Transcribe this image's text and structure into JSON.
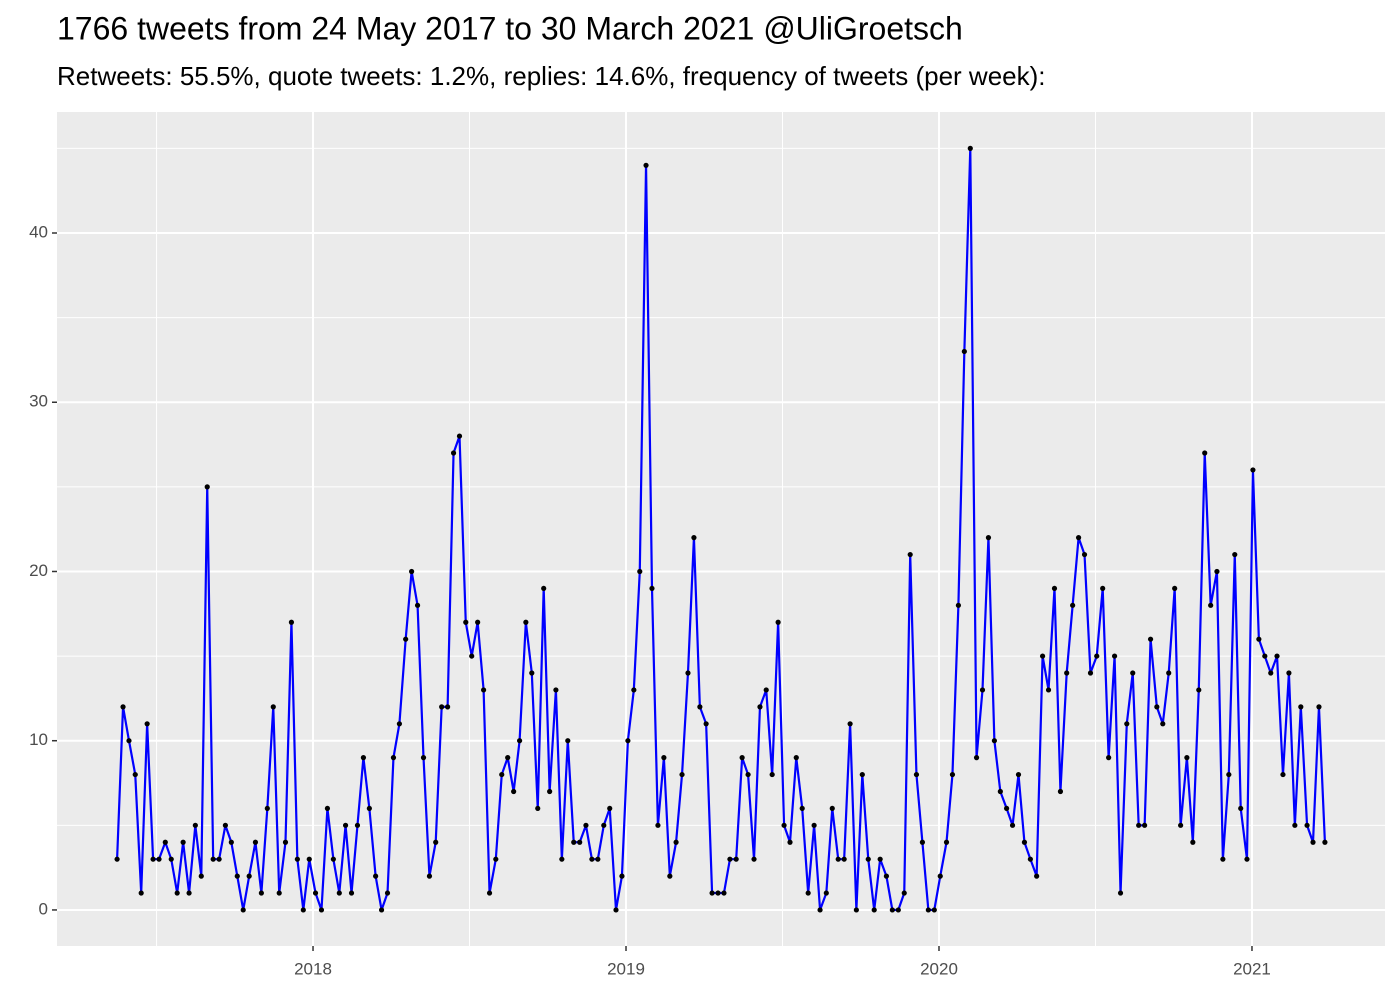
{
  "chart_data": {
    "type": "line",
    "title": "1766 tweets from 24 May 2017 to 30 March 2021 @UliGroetsch",
    "subtitle": "Retweets: 55.5%, quote tweets: 1.2%, replies: 14.6%, frequency of tweets (per week):",
    "color": "#0000ff",
    "point_color": "#000000",
    "grid": true,
    "xlim": [
      2017.182,
      2021.425
    ],
    "xticks": [
      2018,
      2019,
      2020,
      2021
    ],
    "ylim": [
      -2.13,
      47.15
    ],
    "yticks": [
      0,
      10,
      20,
      30,
      40
    ],
    "x": [
      2017.374,
      2017.393,
      2017.412,
      2017.432,
      2017.451,
      2017.47,
      2017.489,
      2017.508,
      2017.528,
      2017.547,
      2017.566,
      2017.585,
      2017.604,
      2017.624,
      2017.643,
      2017.662,
      2017.681,
      2017.7,
      2017.72,
      2017.739,
      2017.758,
      2017.777,
      2017.796,
      2017.816,
      2017.835,
      2017.854,
      2017.873,
      2017.892,
      2017.912,
      2017.931,
      2017.95,
      2017.969,
      2017.988,
      2018.008,
      2018.027,
      2018.046,
      2018.065,
      2018.084,
      2018.104,
      2018.123,
      2018.142,
      2018.161,
      2018.18,
      2018.2,
      2018.219,
      2018.238,
      2018.257,
      2018.276,
      2018.296,
      2018.315,
      2018.334,
      2018.353,
      2018.372,
      2018.392,
      2018.411,
      2018.43,
      2018.449,
      2018.468,
      2018.488,
      2018.507,
      2018.526,
      2018.545,
      2018.564,
      2018.584,
      2018.603,
      2018.622,
      2018.641,
      2018.66,
      2018.68,
      2018.699,
      2018.718,
      2018.737,
      2018.756,
      2018.776,
      2018.795,
      2018.814,
      2018.833,
      2018.852,
      2018.872,
      2018.891,
      2018.91,
      2018.929,
      2018.948,
      2018.968,
      2018.987,
      2019.006,
      2019.025,
      2019.044,
      2019.064,
      2019.083,
      2019.102,
      2019.121,
      2019.14,
      2019.16,
      2019.179,
      2019.198,
      2019.217,
      2019.236,
      2019.256,
      2019.275,
      2019.294,
      2019.313,
      2019.332,
      2019.352,
      2019.371,
      2019.39,
      2019.409,
      2019.428,
      2019.448,
      2019.467,
      2019.486,
      2019.505,
      2019.524,
      2019.544,
      2019.563,
      2019.582,
      2019.601,
      2019.62,
      2019.64,
      2019.659,
      2019.678,
      2019.697,
      2019.716,
      2019.736,
      2019.755,
      2019.774,
      2019.793,
      2019.812,
      2019.832,
      2019.851,
      2019.87,
      2019.889,
      2019.908,
      2019.928,
      2019.947,
      2019.966,
      2019.985,
      2020.004,
      2020.024,
      2020.043,
      2020.062,
      2020.081,
      2020.1,
      2020.12,
      2020.139,
      2020.158,
      2020.177,
      2020.196,
      2020.216,
      2020.235,
      2020.254,
      2020.273,
      2020.292,
      2020.312,
      2020.331,
      2020.35,
      2020.369,
      2020.388,
      2020.408,
      2020.427,
      2020.446,
      2020.465,
      2020.484,
      2020.504,
      2020.523,
      2020.542,
      2020.561,
      2020.58,
      2020.6,
      2020.619,
      2020.638,
      2020.657,
      2020.676,
      2020.696,
      2020.715,
      2020.734,
      2020.753,
      2020.772,
      2020.792,
      2020.811,
      2020.83,
      2020.849,
      2020.868,
      2020.888,
      2020.907,
      2020.926,
      2020.945,
      2020.964,
      2020.984,
      2021.003,
      2021.022,
      2021.041,
      2021.06,
      2021.08,
      2021.099,
      2021.118,
      2021.137,
      2021.156,
      2021.176,
      2021.195,
      2021.214,
      2021.233
    ],
    "values": [
      3,
      12,
      10,
      8,
      1,
      11,
      3,
      3,
      4,
      3,
      1,
      4,
      1,
      5,
      2,
      25,
      3,
      3,
      5,
      4,
      2,
      0,
      2,
      4,
      1,
      6,
      12,
      1,
      4,
      17,
      3,
      0,
      3,
      1,
      0,
      6,
      3,
      1,
      5,
      1,
      5,
      9,
      6,
      2,
      0,
      1,
      9,
      11,
      16,
      20,
      18,
      9,
      2,
      4,
      12,
      12,
      27,
      28,
      17,
      15,
      17,
      13,
      1,
      3,
      8,
      9,
      7,
      10,
      17,
      14,
      6,
      19,
      7,
      13,
      3,
      10,
      4,
      4,
      5,
      3,
      3,
      5,
      6,
      0,
      2,
      10,
      13,
      20,
      44,
      19,
      5,
      9,
      2,
      4,
      8,
      14,
      22,
      12,
      11,
      1,
      1,
      1,
      3,
      3,
      9,
      8,
      3,
      12,
      13,
      8,
      17,
      5,
      4,
      9,
      6,
      1,
      5,
      0,
      1,
      6,
      3,
      3,
      11,
      0,
      8,
      3,
      0,
      3,
      2,
      0,
      0,
      1,
      21,
      8,
      4,
      0,
      0,
      2,
      4,
      8,
      18,
      33,
      45,
      9,
      13,
      22,
      10,
      7,
      6,
      5,
      8,
      4,
      3,
      2,
      15,
      13,
      19,
      7,
      14,
      18,
      22,
      21,
      14,
      15,
      19,
      9,
      15,
      1,
      11,
      14,
      5,
      5,
      16,
      12,
      11,
      14,
      19,
      5,
      9,
      4,
      13,
      27,
      18,
      20,
      3,
      8,
      21,
      6,
      3,
      26,
      16,
      15,
      14,
      15,
      8,
      14,
      5,
      12,
      5,
      4,
      12,
      4
    ]
  }
}
